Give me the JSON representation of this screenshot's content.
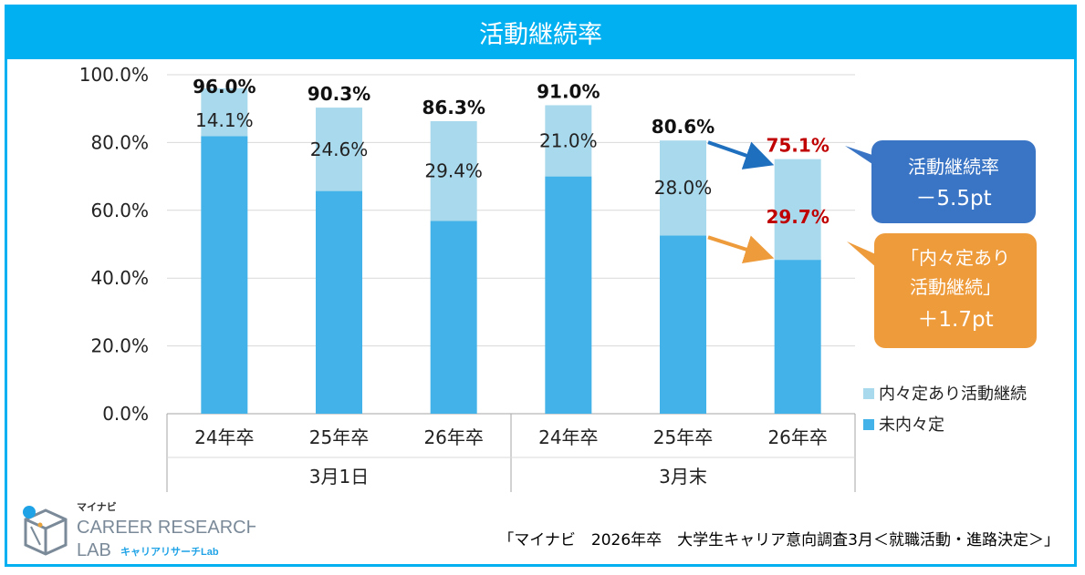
{
  "chart_data": {
    "type": "bar",
    "stacked": true,
    "title": "活動継続率",
    "categories": [
      "24年卒",
      "25年卒",
      "26年卒",
      "24年卒",
      "25年卒",
      "26年卒"
    ],
    "groups": [
      {
        "label": "3月1日",
        "count": 3
      },
      {
        "label": "3月末",
        "count": 3
      }
    ],
    "series": [
      {
        "name": "未内々定",
        "values": [
          81.9,
          65.7,
          56.9,
          70.0,
          52.6,
          45.4
        ]
      },
      {
        "name": "内々定あり活動継続",
        "values": [
          14.1,
          24.6,
          29.4,
          21.0,
          28.0,
          29.7
        ]
      }
    ],
    "segment_labels": [
      "14.1%",
      "24.6%",
      "29.4%",
      "21.0%",
      "28.0%",
      "29.7%"
    ],
    "total_labels": [
      "96.0%",
      "90.3%",
      "86.3%",
      "91.0%",
      "80.6%",
      "75.1%"
    ],
    "ylim": [
      0,
      100
    ],
    "yticks": [
      "0.0%",
      "20.0%",
      "40.0%",
      "60.0%",
      "80.0%",
      "100.0%"
    ],
    "legend": [
      {
        "name": "内々定あり活動継続",
        "color": "#a9d9ec"
      },
      {
        "name": "未内々定",
        "color": "#43b2e8"
      }
    ],
    "callouts": [
      {
        "lines": [
          "活動継続率",
          "－5.5pt"
        ],
        "color": "#3a74c4"
      },
      {
        "lines": [
          "「内々定あり",
          "活動継続」",
          "＋1.7pt"
        ],
        "color": "#ee9b3c"
      }
    ],
    "colors": {
      "accent": "#00b0f0",
      "base": "#43b2e8",
      "top": "#a9d9ec",
      "highlight": "#c00000",
      "arrow_blue": "#1f6fbf",
      "arrow_orange": "#ee9b3c"
    }
  },
  "logo": {
    "brand": "マイナビ",
    "name_line1": "CAREER RESEARCH",
    "name_line2": "LAB",
    "sub": "キャリアリサーチLab"
  },
  "source": "「マイナビ　2026年卒　大学生キャリア意向調査3月＜就職活動・進路決定＞」"
}
